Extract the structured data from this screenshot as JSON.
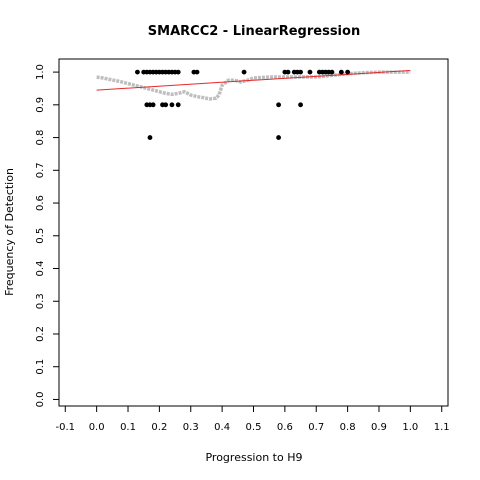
{
  "chart_data": {
    "type": "scatter",
    "title": "SMARCC2 - LinearRegression",
    "xlabel": "Progression to H9",
    "ylabel": "Frequency of Detection",
    "xlim": [
      -0.12,
      1.12
    ],
    "ylim": [
      -0.02,
      1.04
    ],
    "xticks": [
      -0.1,
      0.0,
      0.1,
      0.2,
      0.3,
      0.4,
      0.5,
      0.6,
      0.7,
      0.8,
      0.9,
      1.0,
      1.1
    ],
    "xtick_labels": [
      "-0.1",
      "0.0",
      "0.1",
      "0.2",
      "0.3",
      "0.4",
      "0.5",
      "0.6",
      "0.7",
      "0.8",
      "0.9",
      "1.0",
      "1.1"
    ],
    "yticks": [
      0.0,
      0.1,
      0.2,
      0.3,
      0.4,
      0.5,
      0.6,
      0.7,
      0.8,
      0.9,
      1.0
    ],
    "ytick_labels": [
      "0.0",
      "0.1",
      "0.2",
      "0.3",
      "0.4",
      "0.5",
      "0.6",
      "0.7",
      "0.8",
      "0.9",
      "1.0"
    ],
    "grid": false,
    "legend": "none",
    "series": [
      {
        "kind": "points",
        "color": "#000000",
        "x": [
          0.13,
          0.15,
          0.16,
          0.17,
          0.18,
          0.19,
          0.2,
          0.21,
          0.22,
          0.23,
          0.24,
          0.25,
          0.26,
          0.31,
          0.32,
          0.47,
          0.6,
          0.61,
          0.63,
          0.64,
          0.65,
          0.68,
          0.71,
          0.72,
          0.73,
          0.74,
          0.75,
          0.78,
          0.8,
          0.16,
          0.17,
          0.18,
          0.21,
          0.22,
          0.24,
          0.26,
          0.58,
          0.65,
          0.17,
          0.58
        ],
        "y": [
          1.0,
          1.0,
          1.0,
          1.0,
          1.0,
          1.0,
          1.0,
          1.0,
          1.0,
          1.0,
          1.0,
          1.0,
          1.0,
          1.0,
          1.0,
          1.0,
          1.0,
          1.0,
          1.0,
          1.0,
          1.0,
          1.0,
          1.0,
          1.0,
          1.0,
          1.0,
          1.0,
          1.0,
          1.0,
          0.9,
          0.9,
          0.9,
          0.9,
          0.9,
          0.9,
          0.9,
          0.9,
          0.9,
          0.8,
          0.8
        ]
      },
      {
        "kind": "smooth",
        "color": "#bebebe",
        "x": [
          0.0,
          0.02,
          0.04,
          0.06,
          0.08,
          0.1,
          0.12,
          0.14,
          0.16,
          0.18,
          0.2,
          0.22,
          0.24,
          0.26,
          0.28,
          0.3,
          0.32,
          0.34,
          0.36,
          0.38,
          0.39,
          0.4,
          0.42,
          0.44,
          0.46,
          0.48,
          0.5,
          0.55,
          0.6,
          0.65,
          0.7,
          0.75,
          0.8,
          0.85,
          0.9,
          0.95,
          1.0
        ],
        "y": [
          0.985,
          0.982,
          0.978,
          0.974,
          0.97,
          0.965,
          0.96,
          0.955,
          0.95,
          0.945,
          0.94,
          0.935,
          0.932,
          0.935,
          0.94,
          0.93,
          0.925,
          0.922,
          0.918,
          0.92,
          0.93,
          0.96,
          0.975,
          0.975,
          0.97,
          0.975,
          0.982,
          0.985,
          0.985,
          0.985,
          0.985,
          0.99,
          0.995,
          0.998,
          1.0,
          1.0,
          1.0
        ]
      },
      {
        "kind": "regression",
        "color": "#e8262a",
        "x": [
          0.0,
          1.0
        ],
        "y": [
          0.945,
          1.005
        ]
      }
    ]
  }
}
